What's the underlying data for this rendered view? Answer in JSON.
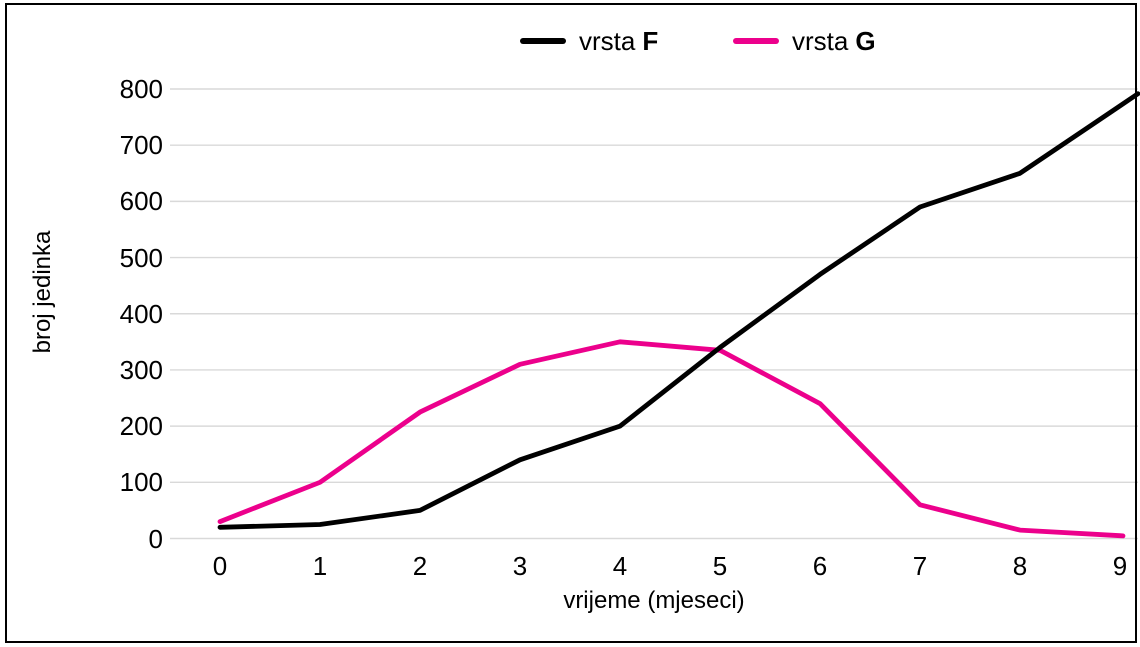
{
  "colors": {
    "background": "#FFFFFF",
    "border": "#000000",
    "grid": "#D9D9D9",
    "text": "#000000",
    "series_f": "#000000",
    "series_g": "#EC008C"
  },
  "chart_data": {
    "type": "line",
    "title": "",
    "x": [
      0,
      1,
      2,
      3,
      4,
      5,
      6,
      7,
      8,
      9
    ],
    "x_tick_labels": [
      "0",
      "1",
      "2",
      "3",
      "4",
      "5",
      "6",
      "7",
      "8",
      "9"
    ],
    "y_tick_labels": [
      "0",
      "100",
      "200",
      "300",
      "400",
      "500",
      "600",
      "700",
      "800"
    ],
    "xlabel": "vrijeme (mjeseci)",
    "ylabel": "broj jedinka",
    "ylim": [
      0,
      800
    ],
    "ytick_step": 100,
    "grid": "horizontal-only",
    "legend_position": "top-center",
    "series": [
      {
        "name": "vrsta F",
        "label_prefix": "vrsta",
        "label_key": "F",
        "color": "#000000",
        "values": [
          20,
          25,
          50,
          140,
          200,
          340,
          470,
          590,
          650,
          770
        ]
      },
      {
        "name": "vrsta G",
        "label_prefix": "vrsta",
        "label_key": "G",
        "color": "#EC008C",
        "values": [
          30,
          100,
          225,
          310,
          350,
          335,
          240,
          60,
          15,
          5
        ]
      }
    ]
  }
}
